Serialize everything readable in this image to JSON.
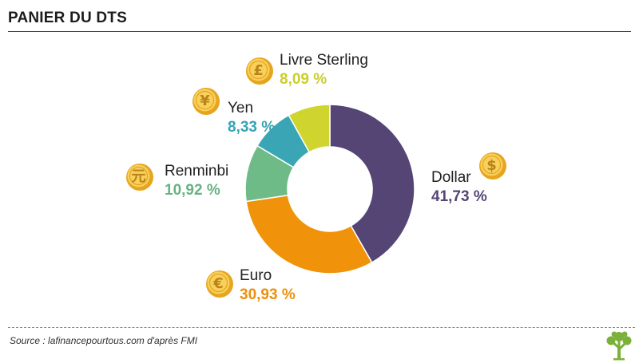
{
  "title": "PANIER DU DTS",
  "source": "Source : lafinancepourtous.com d'après FMI",
  "logo_icon": "tree-logo-icon",
  "chart_data": {
    "type": "pie",
    "donut": true,
    "title": "PANIER DU DTS",
    "slices": [
      {
        "label": "Dollar",
        "value": 41.73,
        "display": "41,73 %",
        "color": "#544575",
        "text_color": "#544575",
        "icon": "dollar-coin-icon",
        "symbol": "$"
      },
      {
        "label": "Euro",
        "value": 30.93,
        "display": "30,93 %",
        "color": "#f0930a",
        "text_color": "#ee8f0a",
        "icon": "euro-coin-icon",
        "symbol": "€"
      },
      {
        "label": "Renminbi",
        "value": 10.92,
        "display": "10,92 %",
        "color": "#6fbb87",
        "text_color": "#67b382",
        "icon": "renminbi-coin-icon",
        "symbol": "元"
      },
      {
        "label": "Yen",
        "value": 8.33,
        "display": "8,33 %",
        "color": "#3aa6b5",
        "text_color": "#36a3b4",
        "icon": "yen-coin-icon",
        "symbol": "¥"
      },
      {
        "label": "Livre Sterling",
        "value": 8.09,
        "display": "8,09 %",
        "color": "#cfd52e",
        "text_color": "#c9cf2c",
        "icon": "pound-coin-icon",
        "symbol": "£"
      }
    ]
  }
}
